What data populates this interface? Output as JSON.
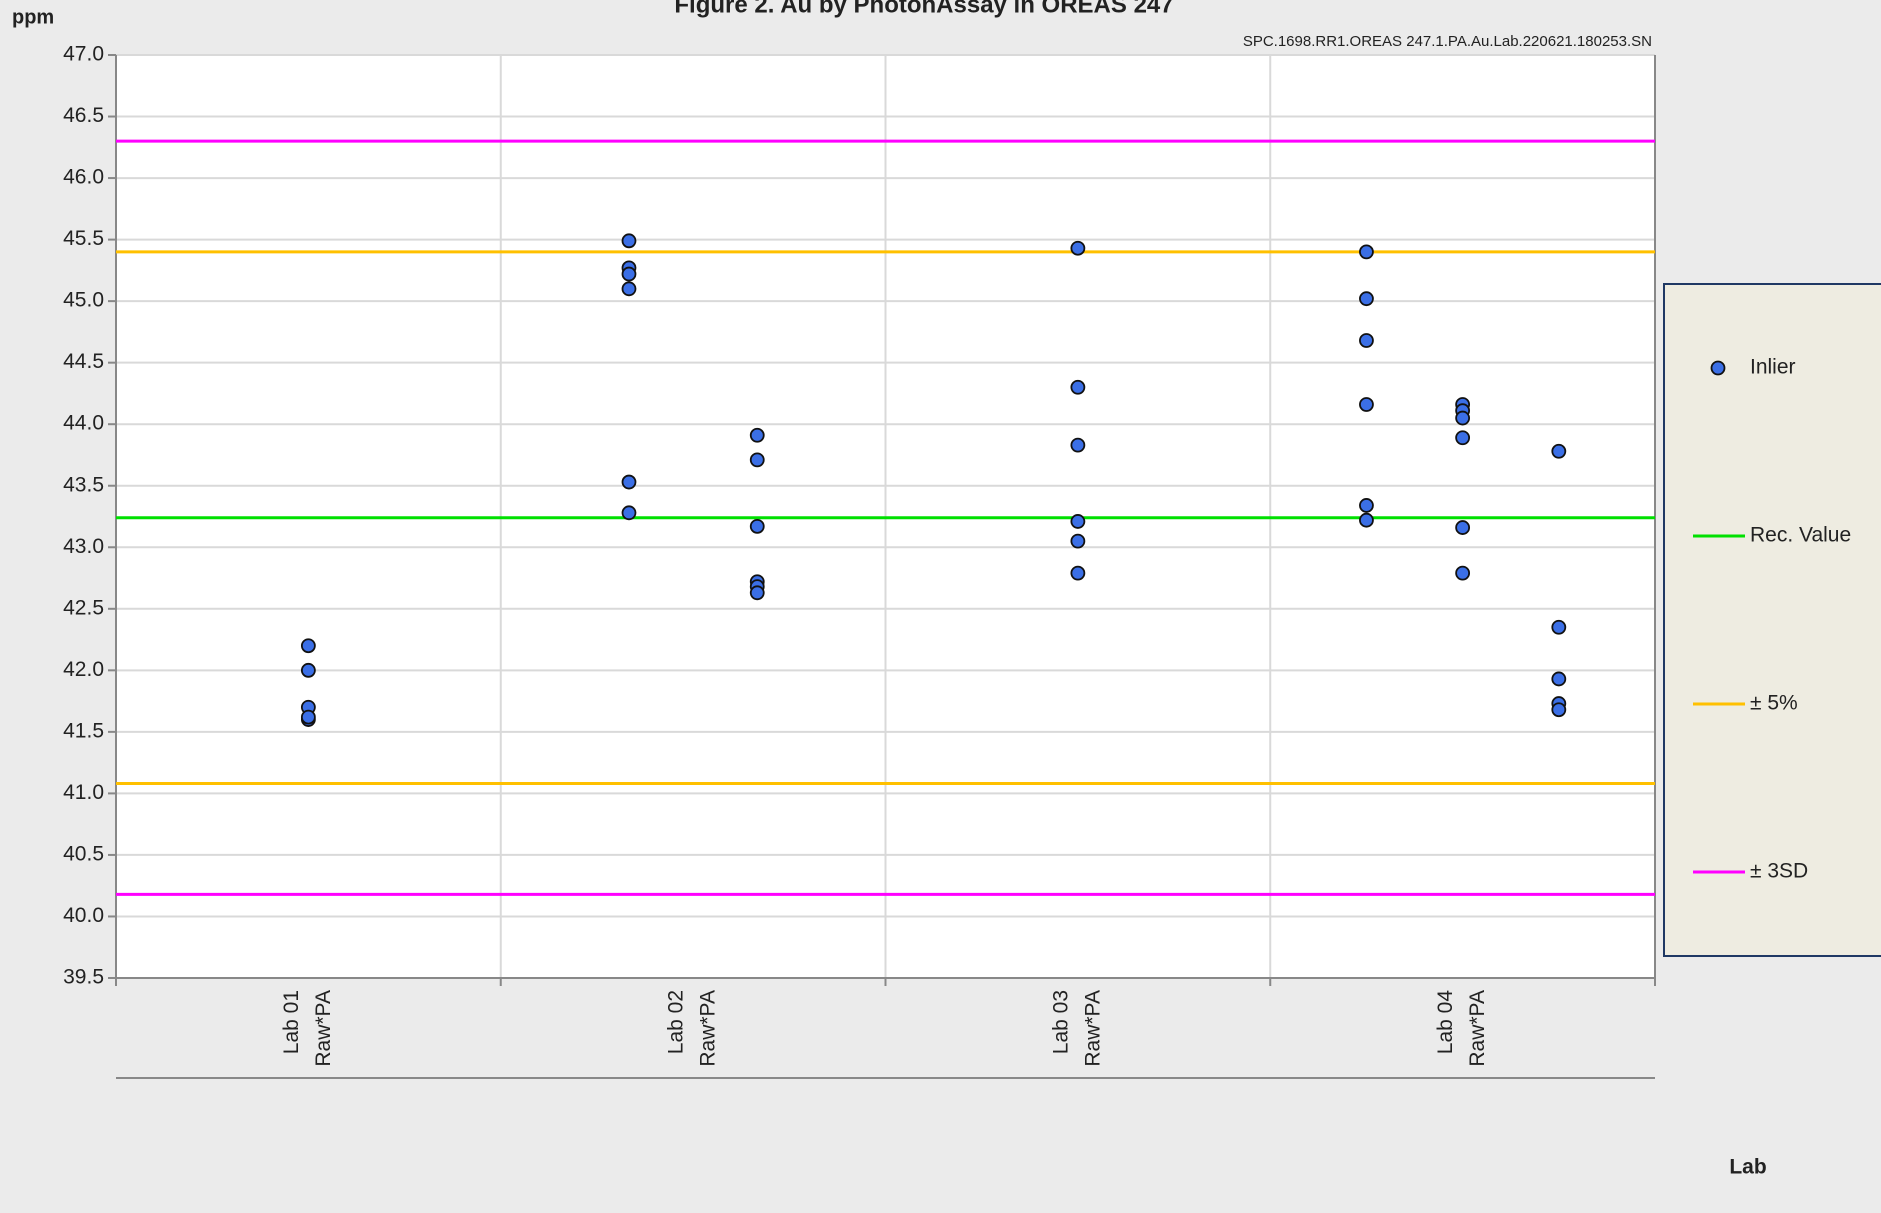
{
  "chart_data": {
    "type": "dot",
    "title": "Figure 2. Au by PhotonAssay in OREAS 247",
    "subtitle": "SPC.1698.RR1.OREAS 247.1.PA.Au.Lab.220621.180253.SN",
    "y_label": "ppm",
    "x_label": "Lab",
    "categories": [
      "Lab 01",
      "Lab 02",
      "Lab 03",
      "Lab 04"
    ],
    "subcategories": [
      "Raw*PA",
      "Raw*PA",
      "Raw*PA",
      "Raw*PA"
    ],
    "series": [
      {
        "name": "Inlier",
        "color": "#3b6fe6",
        "values": [
          [
            [
              42.2,
              42.0,
              41.7,
              41.6,
              41.62
            ]
          ],
          [
            [
              45.49,
              45.27,
              45.22,
              45.1,
              43.53,
              43.28
            ],
            [
              43.91,
              43.71,
              43.17,
              42.72,
              42.68,
              42.63
            ]
          ],
          [
            [
              45.43,
              44.3,
              43.83,
              43.21,
              43.05,
              42.79
            ]
          ],
          [
            [
              45.4,
              45.02,
              44.68,
              44.16,
              43.34,
              43.22
            ],
            [
              44.16,
              44.11,
              44.05,
              43.89,
              43.16,
              42.79
            ],
            [
              43.78,
              42.35,
              41.93,
              41.73,
              41.68
            ]
          ]
        ]
      }
    ],
    "reference_lines": [
      {
        "name": "Rec. Value",
        "color": "#00e000",
        "values": [
          43.24
        ]
      },
      {
        "name": "± 5%",
        "color": "#ffc000",
        "values": [
          45.4,
          41.08
        ]
      },
      {
        "name": "± 3SD",
        "color": "#ff00ff",
        "values": [
          46.3,
          40.18
        ]
      }
    ],
    "ylim": [
      39.5,
      47.0
    ],
    "yticks": [
      {
        "value": 39.5,
        "label": "39.5"
      },
      {
        "value": 40,
        "label": "40.0"
      },
      40.5,
      {
        "value": 41,
        "label": "41.0"
      },
      41.5,
      {
        "value": 42,
        "label": "42.0"
      },
      42.5,
      {
        "value": 43,
        "label": "43.0"
      },
      43.5,
      {
        "value": 44,
        "label": "44.0"
      },
      44.5,
      {
        "value": 45,
        "label": "45.0"
      },
      45.5,
      {
        "value": 46,
        "label": "46.0"
      },
      46.5,
      {
        "value": 47,
        "label": "47.0"
      }
    ],
    "grid": true
  }
}
